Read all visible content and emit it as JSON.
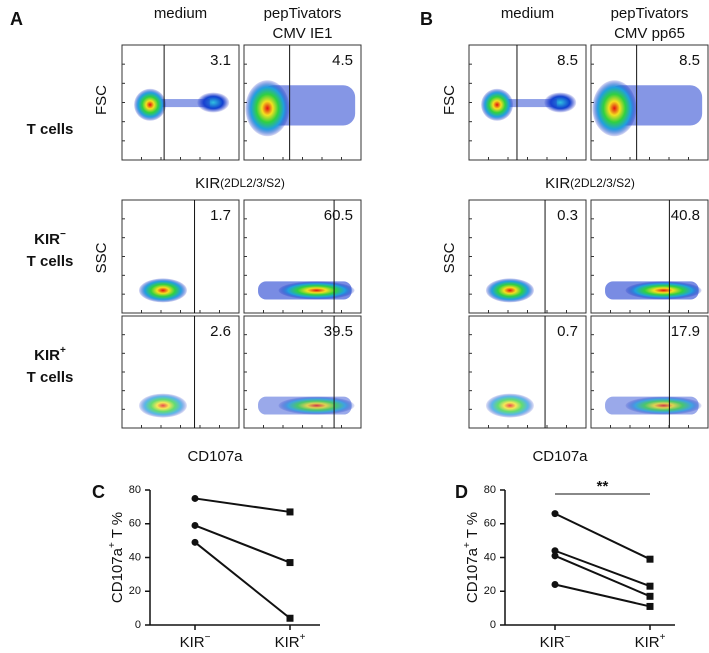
{
  "row_labels": [
    {
      "name": "T cells"
    },
    {
      "name": "KIR",
      "sup": "−",
      "line2": "T cells"
    },
    {
      "name": "KIR",
      "sup": "+",
      "line2": "T cells"
    }
  ],
  "flow_panels": [
    {
      "label": "A",
      "columns": [
        [
          "medium"
        ],
        [
          "pepTivators",
          "CMV IE1"
        ]
      ],
      "gates": [
        [
          3.1,
          4.5
        ],
        [
          1.7,
          60.5
        ],
        [
          2.6,
          39.5
        ]
      ],
      "top_axes": {
        "y": "FSC",
        "x": "KIR",
        "x_sub": "(2DL2/3/S2)"
      },
      "bottom_axes": {
        "y": "SSC",
        "x": "CD107a"
      }
    },
    {
      "label": "B",
      "columns": [
        [
          "medium"
        ],
        [
          "pepTivators",
          "CMV pp65"
        ]
      ],
      "gates": [
        [
          8.5,
          8.5
        ],
        [
          0.3,
          40.8
        ],
        [
          0.7,
          17.9
        ]
      ],
      "top_axes": {
        "y": "FSC",
        "x": "KIR",
        "x_sub": "(2DL2/3/S2)"
      },
      "bottom_axes": {
        "y": "SSC",
        "x": "CD107a"
      }
    }
  ],
  "chart_data": [
    {
      "type": "line",
      "label": "C",
      "ylabel": {
        "main": "CD107a",
        "sup": "+",
        "rest": " T %"
      },
      "categories": [
        "KIR",
        "KIR"
      ],
      "category_superscripts": [
        "−",
        "+"
      ],
      "ylim": [
        0,
        80
      ],
      "yticks": [
        0,
        20,
        40,
        60,
        80
      ],
      "series": [
        {
          "values": [
            75,
            67
          ]
        },
        {
          "values": [
            59,
            37
          ]
        },
        {
          "values": [
            49,
            4
          ]
        }
      ]
    },
    {
      "type": "line",
      "label": "D",
      "ylabel": {
        "main": "CD107a",
        "sup": "+",
        "rest": " T %"
      },
      "categories": [
        "KIR",
        "KIR"
      ],
      "category_superscripts": [
        "−",
        "+"
      ],
      "ylim": [
        0,
        80
      ],
      "yticks": [
        0,
        20,
        40,
        60,
        80
      ],
      "significance": "**",
      "series": [
        {
          "values": [
            66,
            39
          ]
        },
        {
          "values": [
            44,
            23
          ]
        },
        {
          "values": [
            41,
            17
          ]
        },
        {
          "values": [
            24,
            11
          ]
        }
      ]
    }
  ]
}
